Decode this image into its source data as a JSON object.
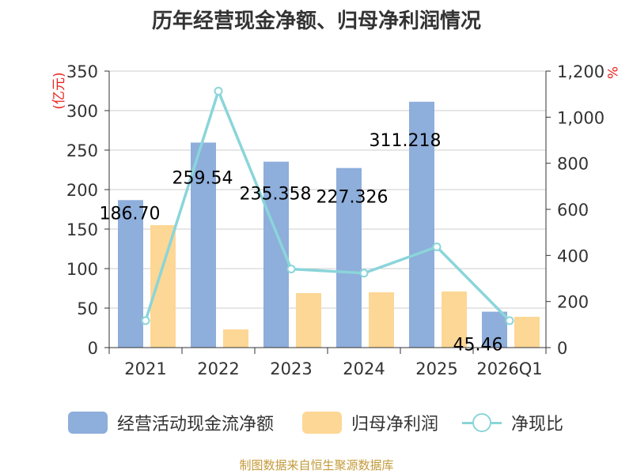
{
  "title": "历年经营现金净额、归母净利润情况",
  "source_note": "制图数据来自恒生聚源数据库",
  "colors": {
    "cash_flow": "#8eaedb",
    "net_profit": "#fdd795",
    "ratio": "#8ad5da",
    "unit_label": "#e8241f"
  },
  "legend": {
    "cash_flow": "经营活动现金流净额",
    "net_profit": "归母净利润",
    "ratio": "净现比"
  },
  "chart_data": {
    "type": "bar",
    "title": "历年经营现金净额、归母净利润情况",
    "categories": [
      "2021",
      "2022",
      "2023",
      "2024",
      "2025",
      "2026Q1"
    ],
    "left_axis": {
      "unit": "(亿元)",
      "ylim": [
        0,
        350
      ],
      "ticks": [
        0,
        50,
        100,
        150,
        200,
        250,
        300,
        350
      ],
      "tick_labels": [
        "0",
        "50",
        "100",
        "150",
        "200",
        "250",
        "300",
        "350"
      ]
    },
    "right_axis": {
      "unit": "%",
      "ylim": [
        0,
        1200
      ],
      "ticks": [
        0,
        200,
        400,
        600,
        800,
        1000,
        1200
      ],
      "tick_labels": [
        "0",
        "200",
        "400",
        "600",
        "800",
        "1,000",
        "1,200"
      ]
    },
    "series": [
      {
        "name": "经营活动现金流净额",
        "type": "bar",
        "axis": "left",
        "values": [
          186.7,
          259.54,
          235.358,
          227.326,
          311.218,
          45.46
        ],
        "data_labels": [
          "186.70",
          "259.54",
          "235.358",
          "227.326",
          "311.218",
          "45.46"
        ]
      },
      {
        "name": "归母净利润",
        "type": "bar",
        "axis": "left",
        "values": [
          155,
          23,
          69,
          70,
          71,
          39
        ]
      },
      {
        "name": "净现比",
        "type": "line",
        "axis": "right",
        "values": [
          117,
          1113,
          341,
          323,
          437,
          117
        ]
      }
    ],
    "grid": true,
    "legend_position": "bottom"
  }
}
